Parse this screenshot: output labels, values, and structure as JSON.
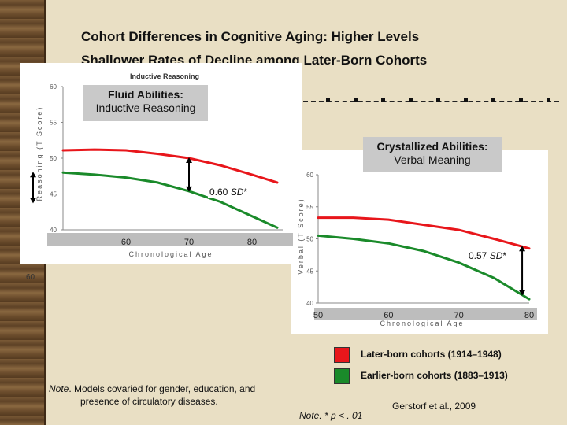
{
  "slide": {
    "title_line1": "Cohort Differences in Cognitive Aging: Higher Levels",
    "title_line2": "Shallower Rates of Decline among Later-Born Cohorts"
  },
  "chart_data": [
    {
      "type": "line",
      "mini_title": "Inductive Reasoning",
      "box_title": "Fluid Abilities:",
      "box_subtitle": "Inductive Reasoning",
      "xlabel": "Chronological Age",
      "ylabel": "Reasoning (T Score)",
      "xlim": [
        50,
        85
      ],
      "ylim": [
        40,
        60
      ],
      "x_ticks": [
        60,
        70,
        80
      ],
      "y_ticks": [
        40,
        45,
        50,
        55,
        60
      ],
      "series": [
        {
          "name": "Later-born cohorts (1914–1948)",
          "color": "#e8161b",
          "x": [
            50,
            55,
            60,
            65,
            70,
            75,
            80,
            84
          ],
          "y": [
            51.1,
            51.2,
            51.1,
            50.6,
            50.0,
            49.0,
            47.7,
            46.6
          ]
        },
        {
          "name": "Earlier-born cohorts (1883–1913)",
          "color": "#1a8a2a",
          "x": [
            50,
            55,
            60,
            65,
            70,
            75,
            80,
            84
          ],
          "y": [
            48.0,
            47.7,
            47.3,
            46.6,
            45.4,
            43.9,
            41.9,
            40.3
          ]
        }
      ],
      "annotation": {
        "value": "0.60",
        "unit": "SD",
        "mark": "*",
        "x": 70,
        "y": 47.2
      },
      "legend_markers": [
        {
          "y_top": 48.0,
          "y_bottom": 43.8
        }
      ]
    },
    {
      "type": "line",
      "box_title": "Crystallized Abilities:",
      "box_subtitle": "Verbal Meaning",
      "xlabel": "Chronological Age",
      "ylabel": "Verbal (T Score)",
      "xlim": [
        50,
        80
      ],
      "ylim": [
        40,
        60
      ],
      "x_ticks": [
        50,
        60,
        70,
        80
      ],
      "y_ticks": [
        40,
        45,
        50,
        55,
        60
      ],
      "series": [
        {
          "name": "Later-born cohorts (1914–1948)",
          "color": "#e8161b",
          "x": [
            50,
            55,
            60,
            65,
            70,
            75,
            80
          ],
          "y": [
            53.3,
            53.3,
            53.0,
            52.2,
            51.4,
            50.0,
            48.5
          ]
        },
        {
          "name": "Earlier-born cohorts (1883–1913)",
          "color": "#1a8a2a",
          "x": [
            50,
            55,
            60,
            65,
            70,
            75,
            80
          ],
          "y": [
            50.5,
            50.0,
            49.3,
            48.1,
            46.3,
            43.9,
            40.6
          ]
        }
      ],
      "annotation": {
        "value": "0.57",
        "unit": "SD",
        "mark": "*",
        "x": 79,
        "y": 45.8
      }
    }
  ],
  "legend": {
    "items": [
      {
        "label": "Later-born cohorts (1914–1948)",
        "color": "#e8161b"
      },
      {
        "label": "Earlier-born cohorts (1883–1913)",
        "color": "#1a8a2a"
      }
    ]
  },
  "notes": {
    "left_prefix": "Note",
    "left_line1": ". Models covaried for gender, education, and",
    "left_line2": "presence of circulatory diseases.",
    "right_prefix": "Note",
    "right_text": ". * p < . 01",
    "citation": "Gerstorf et al., 2009",
    "stray_tick": "60"
  }
}
